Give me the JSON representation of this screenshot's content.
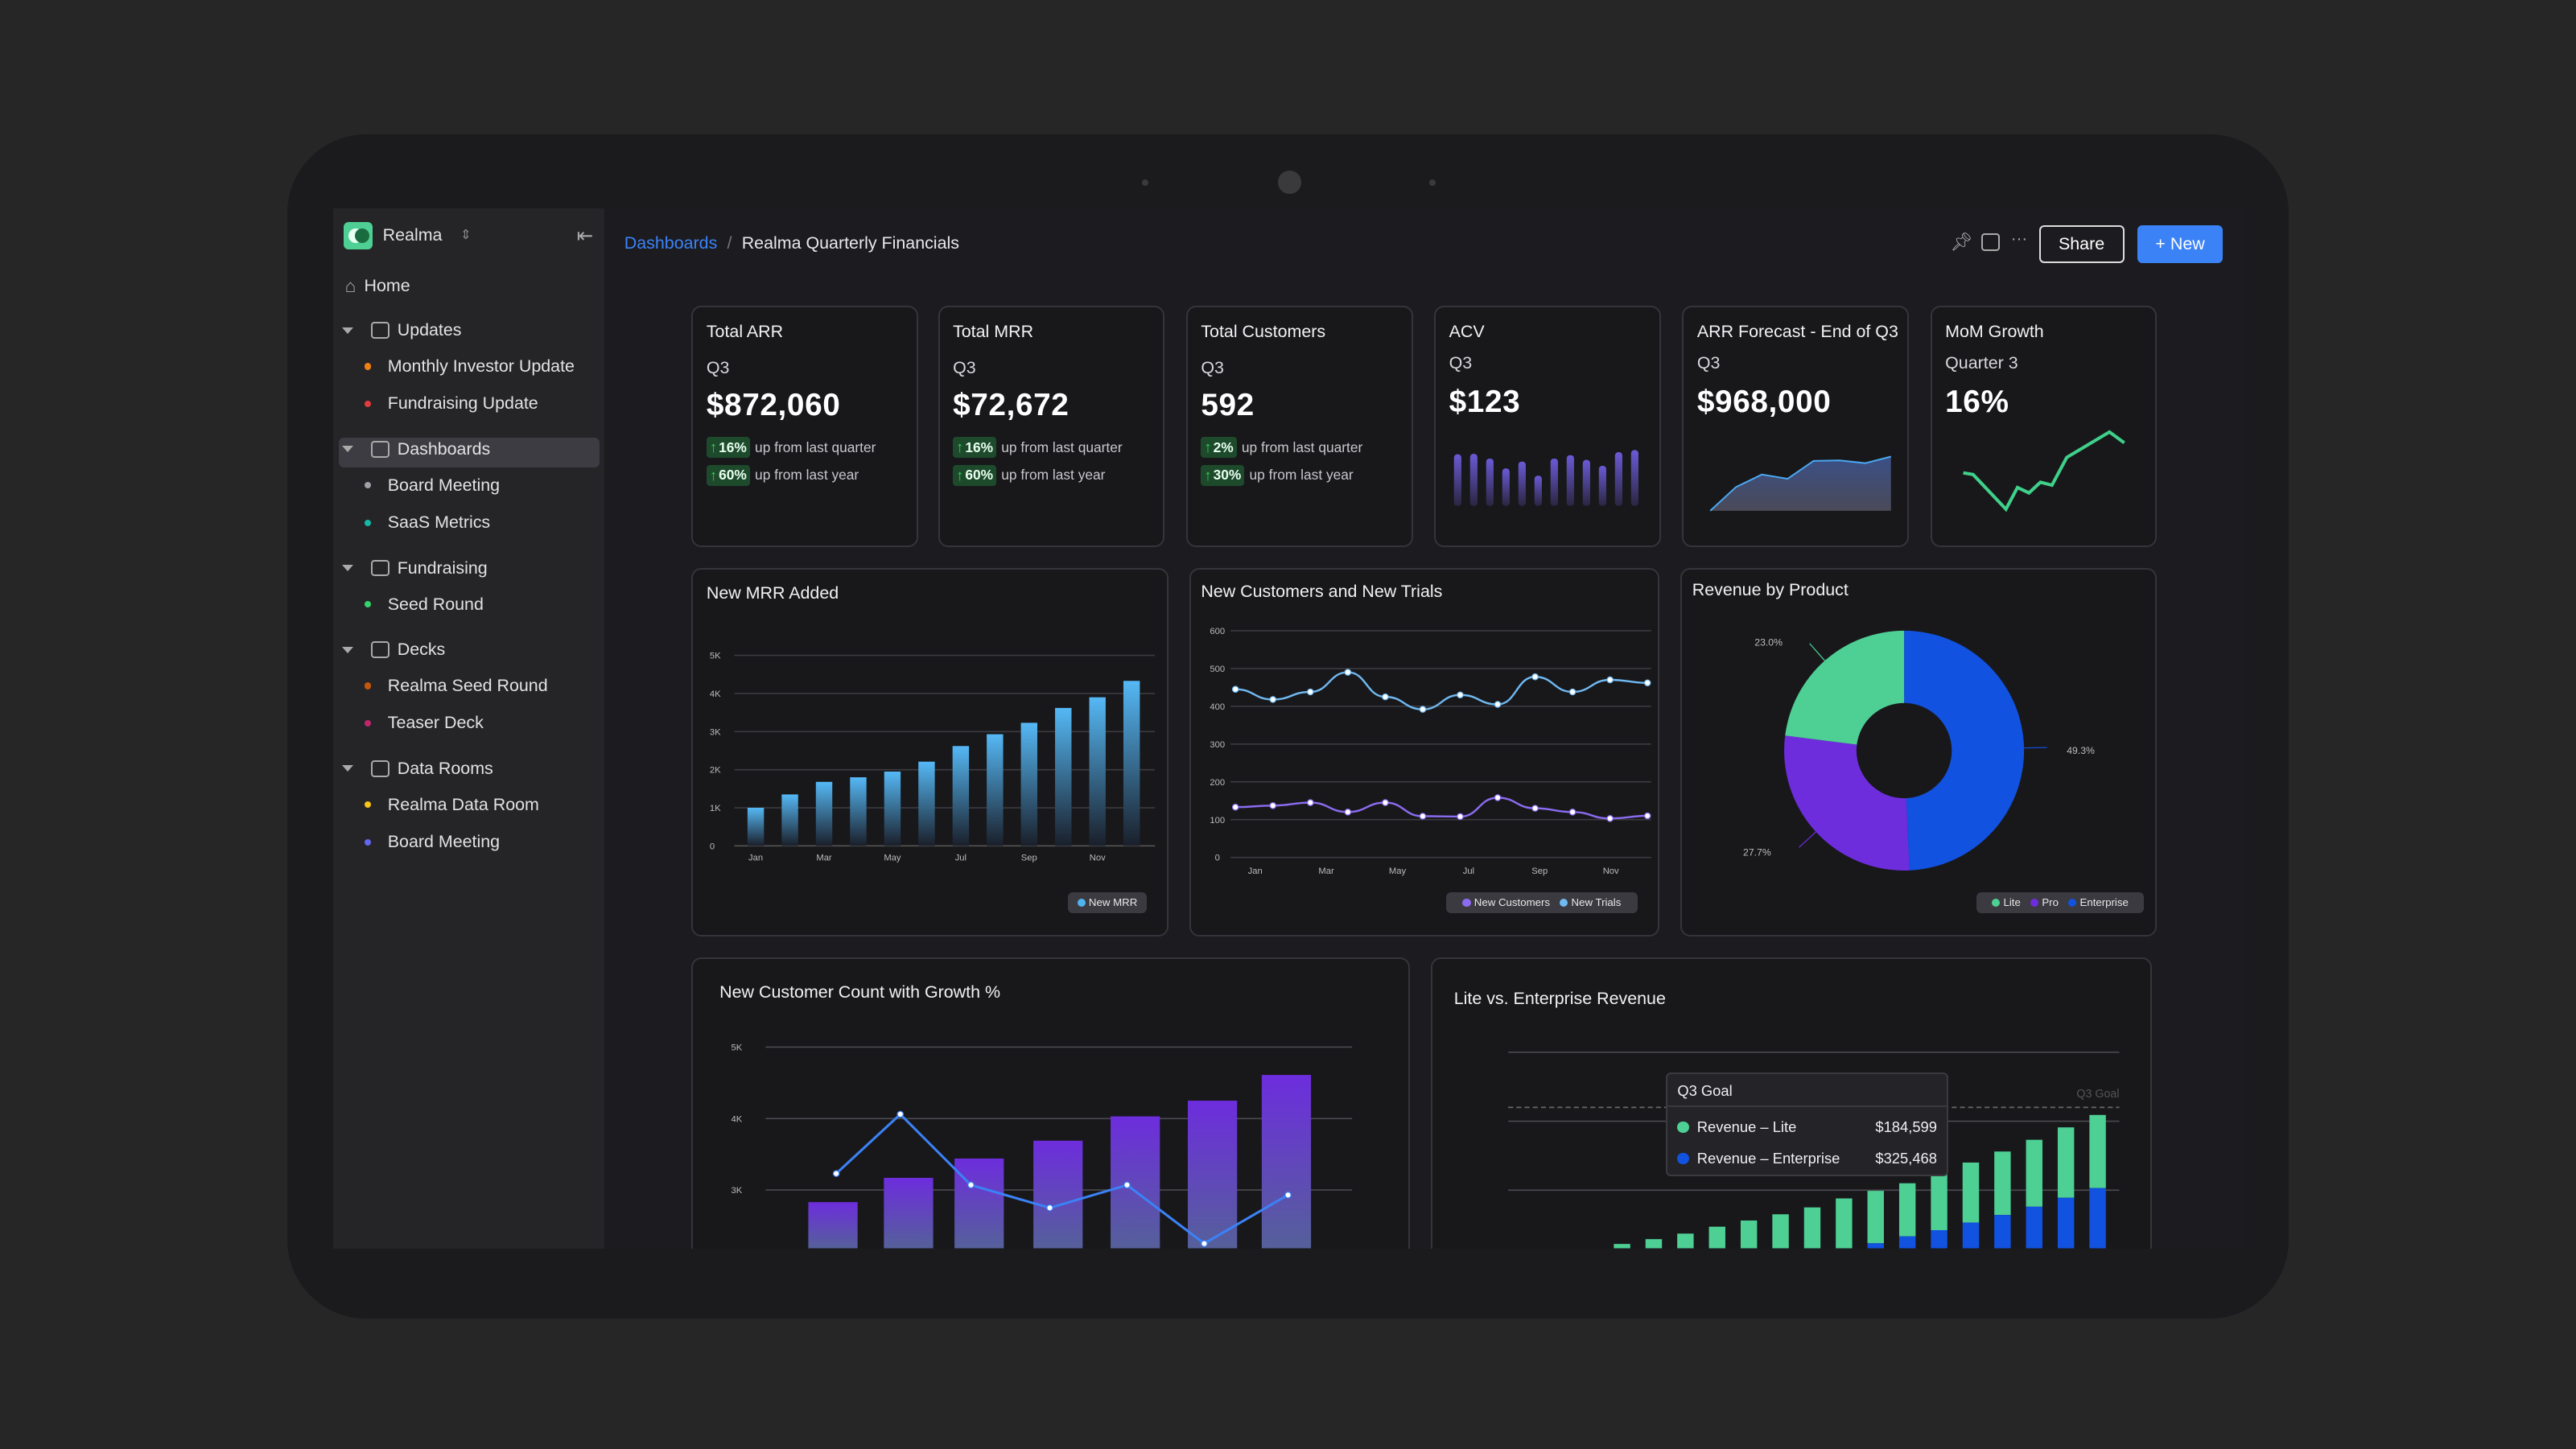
{
  "app": {
    "name": "Realma"
  },
  "sidebar": {
    "home": "Home",
    "sections": [
      {
        "label": "Updates",
        "icon": "updates-icon",
        "items": [
          {
            "label": "Monthly Investor Update",
            "color": "#f07f12"
          },
          {
            "label": "Fundraising Update",
            "color": "#e23b3b"
          }
        ]
      },
      {
        "label": "Dashboards",
        "icon": "dashboard-icon",
        "selected": true,
        "items": [
          {
            "label": "Board Meeting",
            "color": "#a0a0a6"
          },
          {
            "label": "SaaS Metrics",
            "color": "#14b8a6"
          }
        ]
      },
      {
        "label": "Fundraising",
        "icon": "dollar-icon",
        "items": [
          {
            "label": "Seed Round",
            "color": "#34d46c"
          }
        ]
      },
      {
        "label": "Decks",
        "icon": "presentation-icon",
        "items": [
          {
            "label": "Realma Seed Round",
            "color": "#c2570c"
          },
          {
            "label": "Teaser Deck",
            "color": "#c0266c"
          }
        ]
      },
      {
        "label": "Data Rooms",
        "icon": "folder-icon",
        "items": [
          {
            "label": "Realma Data Room",
            "color": "#f5c518"
          },
          {
            "label": "Board Meeting",
            "color": "#6366f1"
          }
        ]
      }
    ]
  },
  "header": {
    "breadcrumb_root": "Dashboards",
    "breadcrumb_sep": "/",
    "title": "Realma Quarterly Financials",
    "share": "Share",
    "new": "+ New",
    "accent": "#3b82f6"
  },
  "kpis": [
    {
      "title": "Total ARR",
      "period": "Q3",
      "value": "$872,060",
      "changes": [
        {
          "pct": "16%",
          "text": "up from last quarter"
        },
        {
          "pct": "60%",
          "text": "up from last year"
        }
      ]
    },
    {
      "title": "Total MRR",
      "period": "Q3",
      "value": "$72,672",
      "changes": [
        {
          "pct": "16%",
          "text": "up from last quarter"
        },
        {
          "pct": "60%",
          "text": "up from last year"
        }
      ]
    },
    {
      "title": "Total Customers",
      "period": "Q3",
      "value": "592",
      "changes": [
        {
          "pct": "2%",
          "text": "up from last quarter"
        },
        {
          "pct": "30%",
          "text": "up from last year"
        }
      ]
    },
    {
      "title": "ACV",
      "period": "Q3",
      "value": "$123",
      "spark": [
        0.9,
        0.91,
        0.8,
        0.57,
        0.73,
        0.4,
        0.8,
        0.88,
        0.77,
        0.63,
        0.95,
        1.0
      ]
    },
    {
      "title": "ARR Forecast - End of Q3",
      "period": "Q3",
      "value": "$968,000",
      "spark": [
        0,
        0.44,
        0.67,
        0.59,
        0.92,
        0.93,
        0.88,
        1.0
      ]
    },
    {
      "title": "MoM Growth",
      "period": "Quarter 3",
      "value": "16%",
      "spark": [
        0.47,
        0.45,
        0,
        0.28,
        0.21,
        0.35,
        0.31,
        0.67,
        1,
        0.86
      ]
    }
  ],
  "chart_data": [
    {
      "type": "bar",
      "title": "New MRR Added",
      "categories": [
        "Jan",
        "Feb",
        "Mar",
        "Apr",
        "May",
        "Jun",
        "Jul",
        "Aug",
        "Sep",
        "Oct",
        "Nov",
        "Dec"
      ],
      "x_tick_labels": [
        "Jan",
        "Mar",
        "May",
        "Jul",
        "Sep",
        "Nov"
      ],
      "series": [
        {
          "name": "New MRR",
          "values": [
            1000,
            1350,
            1680,
            1800,
            1950,
            2210,
            2620,
            2930,
            3230,
            3620,
            3900,
            4330
          ]
        }
      ],
      "ylim": [
        0,
        5000
      ],
      "y_ticks": [
        "0",
        "1K",
        "2K",
        "3K",
        "4K",
        "5K"
      ],
      "grid": true,
      "legend": "bottom-right",
      "color": "#4fb3f0"
    },
    {
      "type": "line",
      "title": "New Customers and New Trials",
      "categories": [
        "Jan",
        "Feb",
        "Mar",
        "Apr",
        "May",
        "Jun",
        "Jul",
        "Aug",
        "Sep",
        "Oct",
        "Nov",
        "Dec"
      ],
      "x_tick_labels": [
        "Jan",
        "Mar",
        "May",
        "Jul",
        "Sep",
        "Nov"
      ],
      "series": [
        {
          "name": "New Customers",
          "color": "#8b6cf0",
          "values": [
            133,
            137,
            145,
            120,
            145,
            109,
            108,
            158,
            130,
            120,
            103,
            110
          ]
        },
        {
          "name": "New Trials",
          "color": "#6fb8f0",
          "values": [
            445,
            418,
            438,
            490,
            425,
            392,
            430,
            405,
            478,
            438,
            470,
            462
          ]
        }
      ],
      "ylim": [
        0,
        600
      ],
      "y_ticks": [
        "0",
        "100",
        "200",
        "300",
        "400",
        "500",
        "600"
      ],
      "grid": true,
      "legend": "bottom-right"
    },
    {
      "type": "pie",
      "title": "Revenue by Product",
      "donut": true,
      "series": [
        {
          "name": "Enterprise",
          "value": 49.3,
          "label": "49.3%",
          "color": "#1252e0"
        },
        {
          "name": "Pro",
          "value": 27.7,
          "label": "27.7%",
          "color": "#6d2ddd"
        },
        {
          "name": "Lite",
          "value": 23.0,
          "label": "23.0%",
          "color": "#4ecf94"
        }
      ],
      "legend_order": [
        "Lite",
        "Pro",
        "Enterprise"
      ],
      "legend": "bottom-right"
    },
    {
      "type": "bar",
      "title": "New Customer Count with Growth %",
      "y_ticks": [
        "3K",
        "4K",
        "5K"
      ],
      "bars": [
        2830,
        3170,
        3440,
        3690,
        4030,
        4250,
        4610
      ],
      "line": [
        3230,
        4060,
        3070,
        2750,
        3070,
        2250,
        2930
      ],
      "grid": true,
      "bar_color": "#6d2ddd",
      "line_color": "#3b82f6"
    },
    {
      "type": "bar",
      "stacked": true,
      "title": "Lite vs. Enterprise Revenue",
      "series": [
        {
          "name": "Revenue – Lite",
          "color": "#4ecf94",
          "values": [
            0.15,
            0.22,
            0.29,
            0.37,
            0.47,
            0.56,
            0.65,
            0.75,
            0.73,
            0.76,
            0.77,
            0.83,
            0.87,
            0.92,
            0.97,
            1.02,
            1.06
          ]
        },
        {
          "name": "Revenue – Enterprise",
          "color": "#1252e0",
          "values": [
            0,
            0,
            0,
            0,
            0,
            0,
            0,
            0,
            0.15,
            0.23,
            0.33,
            0.42,
            0.53,
            0.64,
            0.76,
            0.89,
            1.03
          ]
        }
      ],
      "goal": {
        "label": "Q3 Goal",
        "value": 2.2
      },
      "grid": true,
      "tooltip": {
        "title": "Q3 Goal",
        "rows": [
          {
            "label": "Revenue – Lite",
            "value": "$184,599",
            "color": "#4ecf94"
          },
          {
            "label": "Revenue – Enterprise",
            "value": "$325,468",
            "color": "#1252e0"
          }
        ]
      }
    }
  ]
}
